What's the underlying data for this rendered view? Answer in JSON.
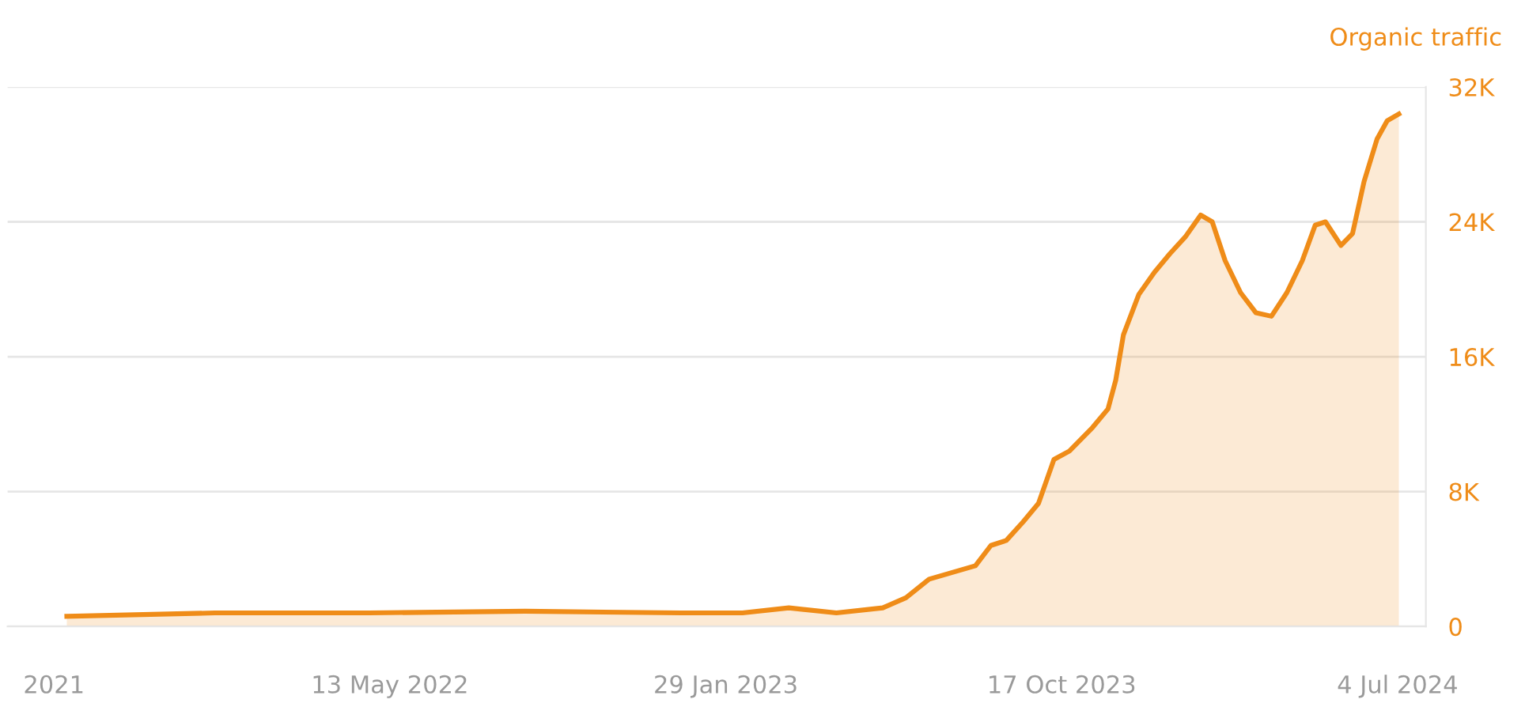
{
  "chart_data": {
    "type": "area",
    "series": [
      {
        "name": "Organic traffic",
        "color": "#ef8c18",
        "x": [
          "2021-09-04",
          "2021-12-28",
          "2022-04-27",
          "2022-08-26",
          "2022-12-25",
          "2023-02-11",
          "2023-03-19",
          "2023-04-25",
          "2023-05-31",
          "2023-06-18",
          "2023-07-06",
          "2023-07-24",
          "2023-08-11",
          "2023-08-23",
          "2023-09-04",
          "2023-09-17",
          "2023-09-29",
          "2023-10-11",
          "2023-10-23",
          "2023-11-10",
          "2023-11-22",
          "2023-11-28",
          "2023-12-04",
          "2023-12-16",
          "2023-12-28",
          "2024-01-09",
          "2024-01-21",
          "2024-02-02",
          "2024-02-11",
          "2024-02-21",
          "2024-03-04",
          "2024-03-16",
          "2024-03-28",
          "2024-04-09",
          "2024-04-21",
          "2024-05-01",
          "2024-05-09",
          "2024-05-21",
          "2024-05-30",
          "2024-06-08",
          "2024-06-18",
          "2024-06-26",
          "2024-07-05"
        ],
        "values": [
          600,
          800,
          800,
          900,
          800,
          800,
          1100,
          800,
          1100,
          1700,
          2800,
          3200,
          3600,
          4800,
          5100,
          6200,
          7300,
          9900,
          10400,
          11800,
          12900,
          14600,
          17300,
          19700,
          21000,
          22100,
          23100,
          24400,
          24000,
          21700,
          19800,
          18600,
          18400,
          19800,
          21700,
          23800,
          24000,
          22600,
          23300,
          26400,
          28900,
          30000,
          30400
        ]
      }
    ],
    "xlim": [
      "2021-07-20",
      "2024-07-26"
    ],
    "xticks": [
      {
        "value": "2021-08-25",
        "label": "2021"
      },
      {
        "value": "2022-05-13",
        "label": "13 May 2022"
      },
      {
        "value": "2023-01-29",
        "label": "29 Jan 2023"
      },
      {
        "value": "2023-10-17",
        "label": "17 Oct 2023"
      },
      {
        "value": "2024-07-04",
        "label": "4 Jul 2024"
      }
    ],
    "ylim": [
      0,
      32000
    ],
    "yticks": [
      {
        "value": 0,
        "label": "0"
      },
      {
        "value": 8000,
        "label": "8K"
      },
      {
        "value": 16000,
        "label": "16K"
      },
      {
        "value": 24000,
        "label": "24K"
      },
      {
        "value": 32000,
        "label": "32K"
      }
    ],
    "grid": "y",
    "legend": false
  }
}
